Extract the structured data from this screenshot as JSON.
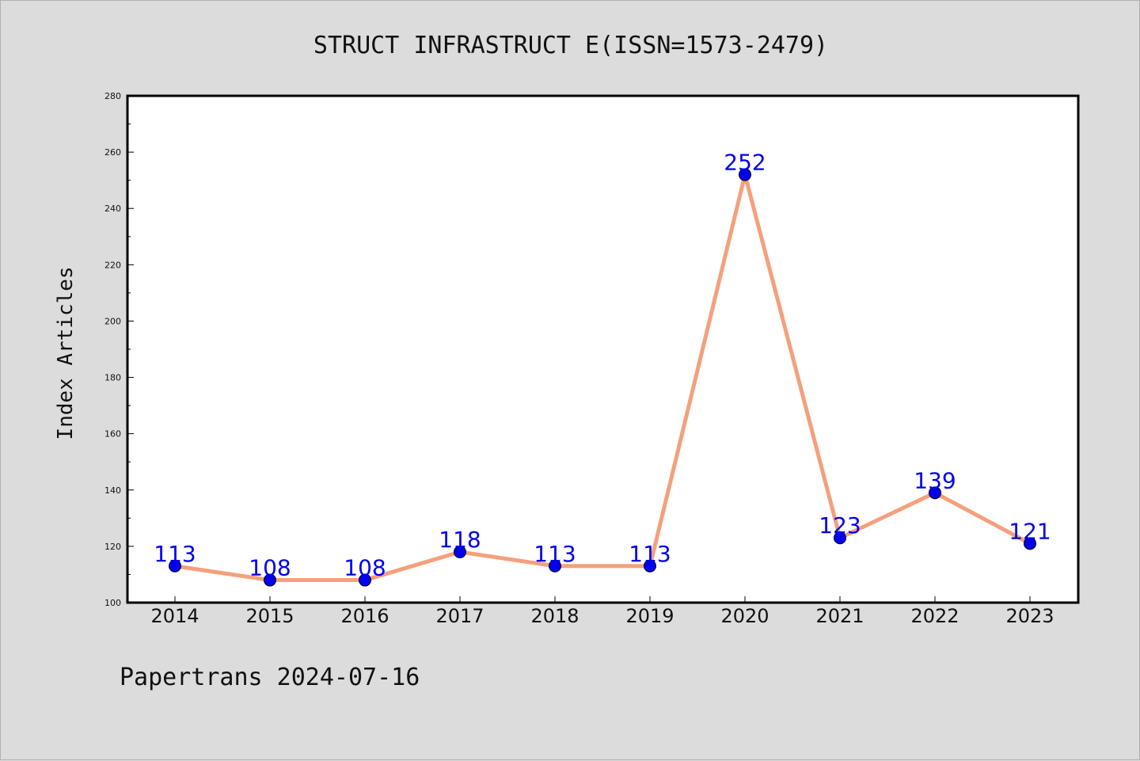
{
  "chart_data": {
    "type": "line",
    "title": "STRUCT INFRASTRUCT E(ISSN=1573-2479)",
    "ylabel": "Index Articles",
    "xlabel": "",
    "x": [
      "2014",
      "2015",
      "2016",
      "2017",
      "2018",
      "2019",
      "2020",
      "2021",
      "2022",
      "2023"
    ],
    "series": [
      {
        "values": [
          113,
          108,
          108,
          118,
          113,
          113,
          252,
          123,
          139,
          121
        ],
        "line_color": "#f4a07c",
        "marker_color": "#0000ee"
      }
    ],
    "data_labels": [
      "113",
      "108",
      "108",
      "118",
      "113",
      "113",
      "252",
      "123",
      "139",
      "121"
    ],
    "ylim": [
      100,
      280
    ],
    "yticks": [
      "100",
      "120",
      "140",
      "160",
      "180",
      "200",
      "220",
      "240",
      "260",
      "280"
    ],
    "grid": false,
    "background_color": "#dcdcdc",
    "plot_background_color": "#ffffff"
  },
  "footer": "Papertrans 2024-07-16"
}
